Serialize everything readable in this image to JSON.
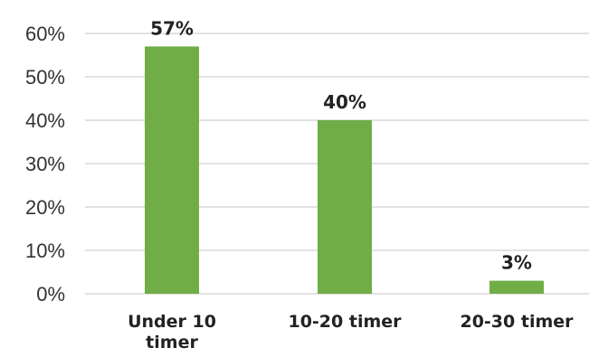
{
  "chart_data": {
    "type": "bar",
    "title": "",
    "xlabel": "",
    "ylabel": "",
    "categories": [
      "Under 10 timer",
      "10-20 timer",
      "20-30 timer"
    ],
    "category_label_lines": [
      [
        "Under 10",
        "timer"
      ],
      [
        "10-20 timer"
      ],
      [
        "20-30 timer"
      ]
    ],
    "values": [
      57,
      40,
      3
    ],
    "data_labels": [
      "57%",
      "40%",
      "3%"
    ],
    "ylim": [
      0,
      60
    ],
    "yticks": [
      0,
      10,
      20,
      30,
      40,
      50,
      60
    ],
    "ytick_labels": [
      "0%",
      "10%",
      "20%",
      "30%",
      "40%",
      "50%",
      "60%"
    ],
    "grid": true,
    "legend": "none",
    "bar_color": "#70ad47",
    "grid_color": "#d9d9d9"
  }
}
